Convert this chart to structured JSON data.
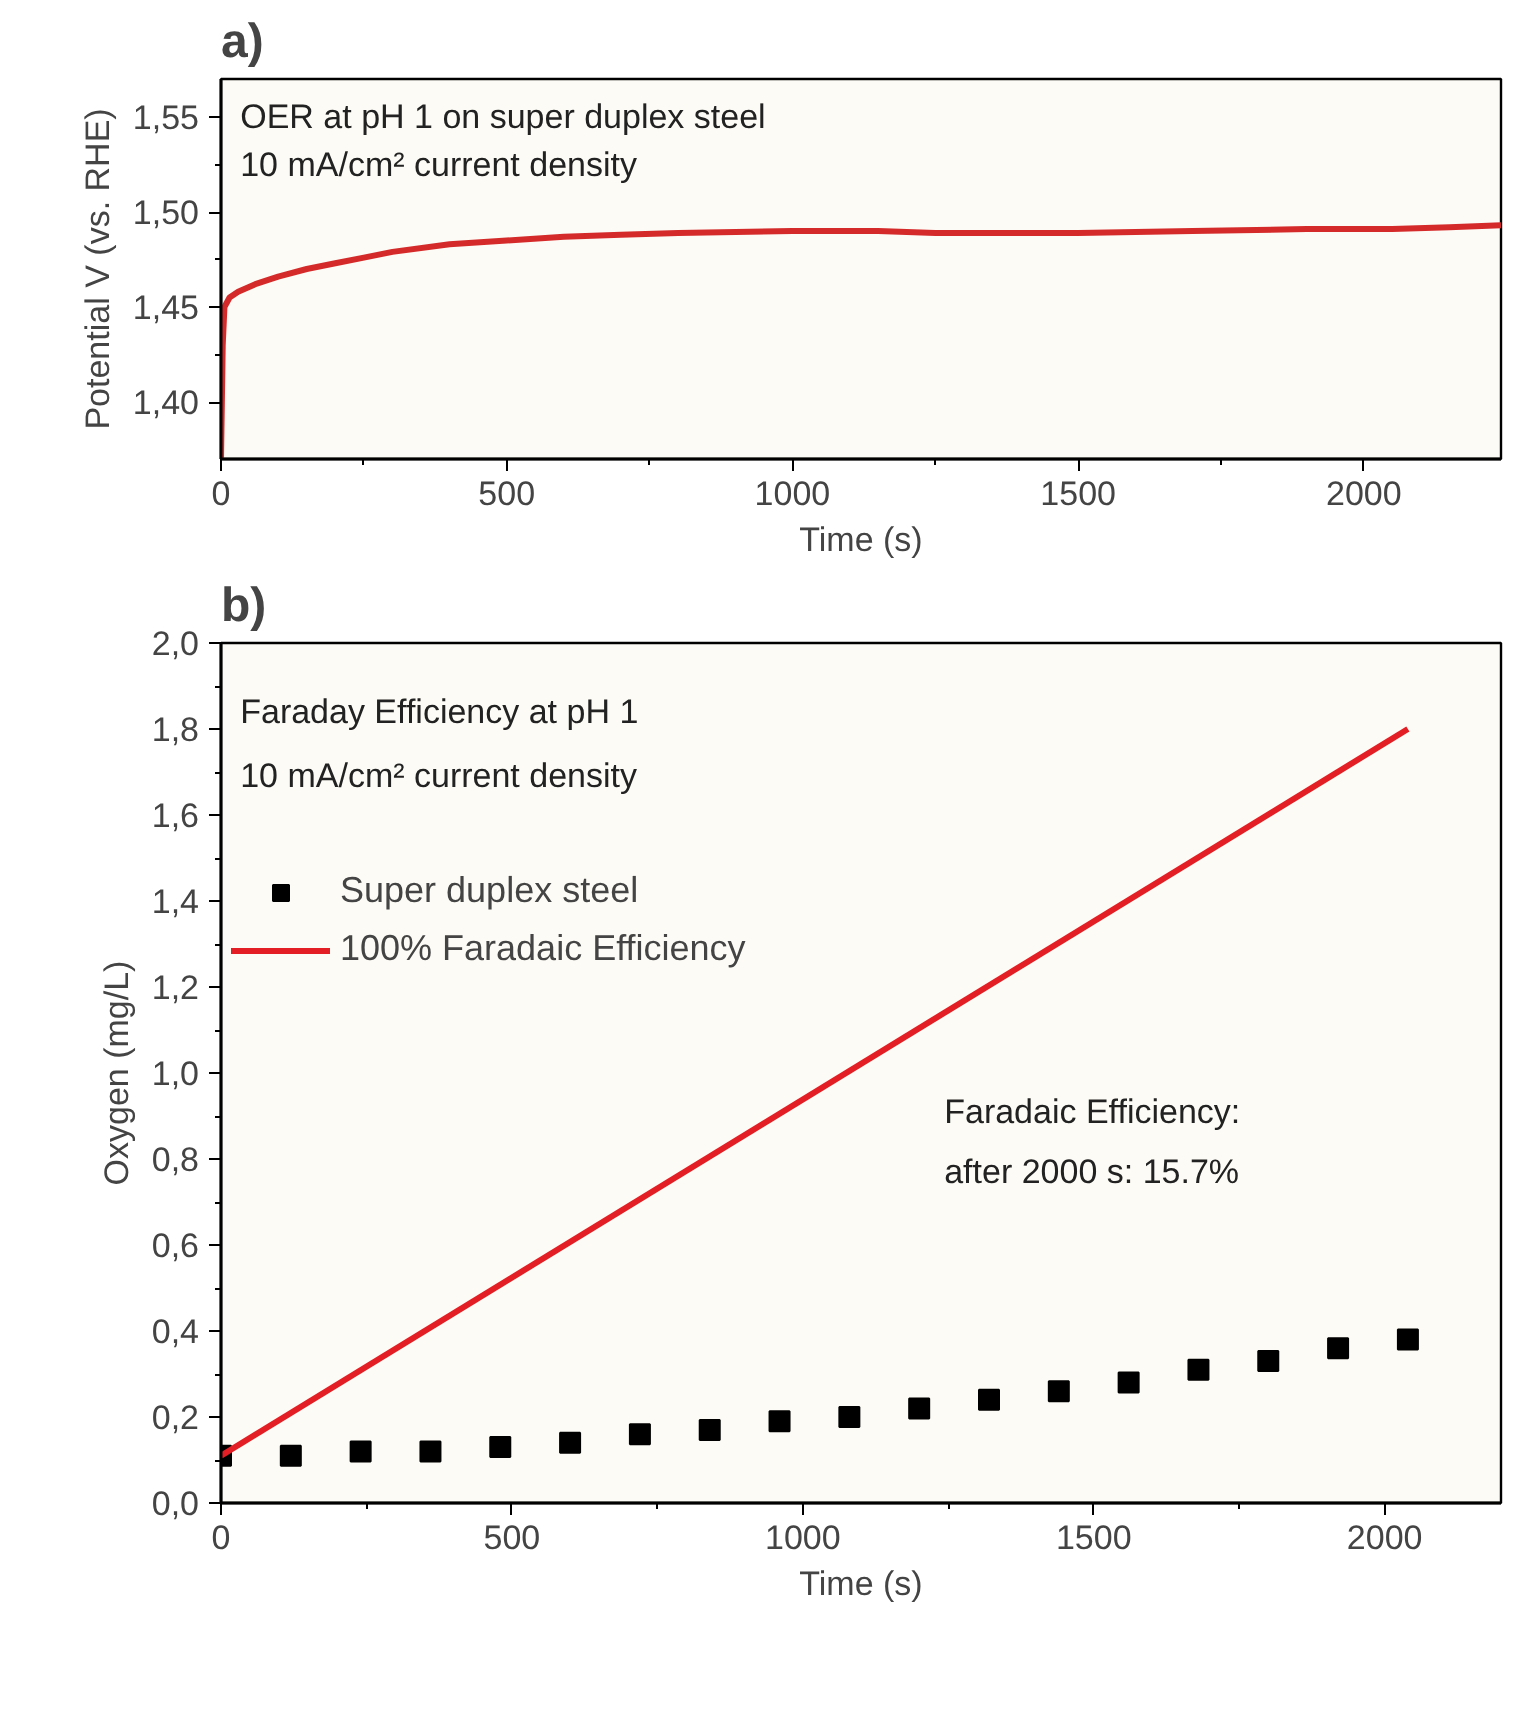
{
  "chart_data": [
    {
      "type": "line",
      "title": "a)",
      "xlabel": "Time (s)",
      "ylabel": "Potential V (vs. RHE)",
      "annotations": [
        "OER at pH 1 on super duplex steel",
        "10 mA/cm² current density"
      ],
      "xlim": [
        0,
        2240
      ],
      "ylim": [
        1.37,
        1.57
      ],
      "xticks": [
        0,
        500,
        1000,
        1500,
        2000
      ],
      "yticks": [
        {
          "value": 1.4,
          "label": "1,40"
        },
        {
          "value": 1.45,
          "label": "1,45"
        },
        {
          "value": 1.5,
          "label": "1,50"
        },
        {
          "value": 1.55,
          "label": "1,55"
        }
      ],
      "grid": false,
      "legend": false,
      "series": [
        {
          "color": "#d42a2a",
          "x": [
            0,
            3,
            6,
            15,
            30,
            60,
            100,
            150,
            200,
            250,
            300,
            400,
            500,
            600,
            700,
            800,
            1000,
            1150,
            1250,
            1400,
            1500,
            1700,
            1900,
            2050,
            2150,
            2240
          ],
          "values": [
            1.37,
            1.43,
            1.45,
            1.455,
            1.458,
            1.462,
            1.466,
            1.47,
            1.473,
            1.476,
            1.479,
            1.483,
            1.485,
            1.487,
            1.488,
            1.489,
            1.49,
            1.49,
            1.489,
            1.489,
            1.489,
            1.49,
            1.491,
            1.491,
            1.492,
            1.493
          ]
        }
      ]
    },
    {
      "type": "scatter",
      "title": "b)",
      "xlabel": "Time (s)",
      "ylabel": "Oxygen (mg/L)",
      "annotations": [
        "Faraday Efficiency at pH 1",
        "10 mA/cm² current density",
        "Faradaic Efficiency:\nafter 2000 s: 15.7%"
      ],
      "xlim": [
        0,
        2200
      ],
      "ylim": [
        0,
        2.0
      ],
      "xticks": [
        0,
        500,
        1000,
        1500,
        2000
      ],
      "yticks": [
        {
          "value": 0,
          "label": "0,0"
        },
        {
          "value": 0.2,
          "label": "0,2"
        },
        {
          "value": 0.4,
          "label": "0,4"
        },
        {
          "value": 0.6,
          "label": "0,6"
        },
        {
          "value": 0.8,
          "label": "0,8"
        },
        {
          "value": 1.0,
          "label": "1,0"
        },
        {
          "value": 1.2,
          "label": "1,2"
        },
        {
          "value": 1.4,
          "label": "1,4"
        },
        {
          "value": 1.6,
          "label": "1,6"
        },
        {
          "value": 1.8,
          "label": "1,8"
        },
        {
          "value": 2.0,
          "label": "2,0"
        }
      ],
      "grid": false,
      "legend": "top left",
      "series": [
        {
          "name": "Super duplex steel",
          "type": "scatter",
          "marker": "square",
          "color": "#000000",
          "x": [
            0,
            120,
            240,
            360,
            480,
            600,
            720,
            840,
            960,
            1080,
            1200,
            1320,
            1440,
            1560,
            1680,
            1800,
            1920,
            2040
          ],
          "values": [
            0.11,
            0.11,
            0.12,
            0.12,
            0.13,
            0.14,
            0.16,
            0.17,
            0.19,
            0.2,
            0.22,
            0.24,
            0.26,
            0.28,
            0.31,
            0.33,
            0.36,
            0.38
          ]
        },
        {
          "name": "100% Faradaic Efficiency",
          "type": "line",
          "color": "#e31e24",
          "x": [
            0,
            2040
          ],
          "values": [
            0.11,
            1.8
          ]
        }
      ]
    }
  ]
}
